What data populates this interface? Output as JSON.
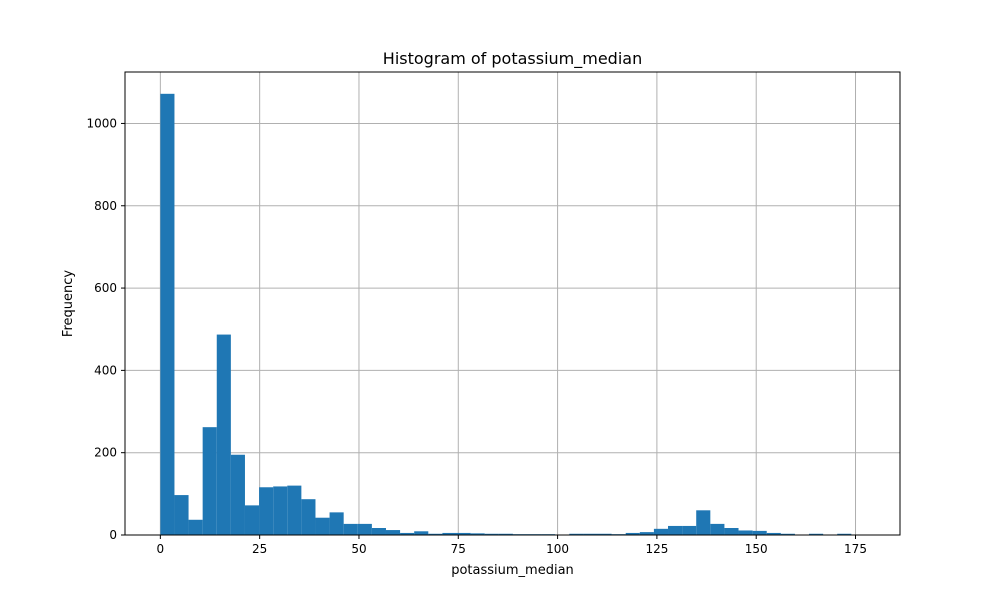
{
  "chart_data": {
    "type": "bar",
    "title": "Histogram of potassium_median",
    "xlabel": "potassium_median",
    "ylabel": "Frequency",
    "xlim": [
      -8.9,
      186.2
    ],
    "ylim": [
      0,
      1125
    ],
    "grid": true,
    "bar_color": "#1f77b4",
    "x_ticks": [
      0,
      25,
      50,
      75,
      100,
      125,
      150,
      175
    ],
    "x_tick_labels": [
      "0",
      "25",
      "50",
      "75",
      "100",
      "125",
      "150",
      "175"
    ],
    "y_ticks": [
      0,
      200,
      400,
      600,
      800,
      1000
    ],
    "y_tick_labels": [
      "0",
      "200",
      "400",
      "600",
      "800",
      "1000"
    ],
    "bin_start": 0,
    "bin_width": 3.55,
    "values": [
      1072,
      97,
      37,
      262,
      487,
      195,
      72,
      116,
      118,
      120,
      87,
      42,
      55,
      27,
      27,
      17,
      12,
      5,
      9,
      3,
      5,
      5,
      4,
      3,
      3,
      2,
      2,
      2,
      1,
      3,
      3,
      3,
      2,
      5,
      7,
      15,
      22,
      22,
      60,
      27,
      17,
      11,
      10,
      5,
      3,
      1,
      3,
      1,
      3,
      1
    ]
  }
}
